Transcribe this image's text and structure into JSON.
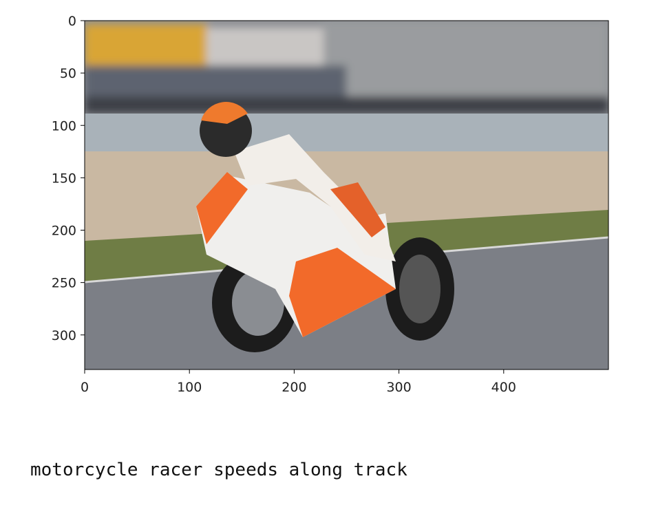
{
  "figure": {
    "type": "image",
    "xlim": [
      0,
      500
    ],
    "ylim": [
      333,
      0
    ],
    "xticks": [
      0,
      100,
      200,
      300,
      400
    ],
    "yticks": [
      0,
      50,
      100,
      150,
      200,
      250,
      300
    ]
  },
  "caption": "motorcycle racer speeds along track"
}
